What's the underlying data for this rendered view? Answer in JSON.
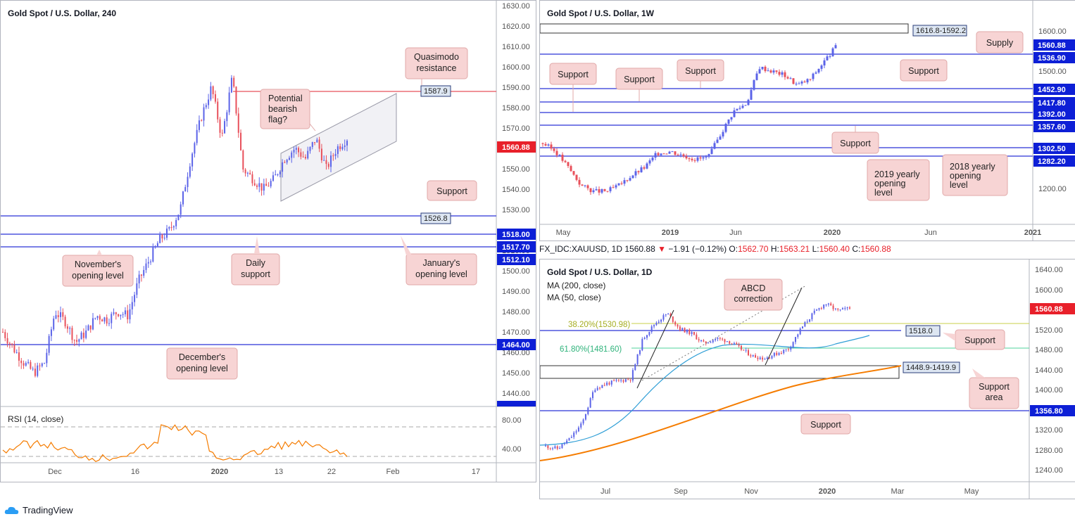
{
  "colors": {
    "up": "#5b63e8",
    "down": "#e8505b",
    "support_line": "#2b33d6",
    "resistance_line": "#e8505b",
    "rsi": "#f57c00",
    "ma200": "#f57c00",
    "ma50": "#2e9ed6",
    "fib38": "#c9d24a",
    "fib61": "#4fd39b",
    "label_bg": "#f7d4d4"
  },
  "brand": {
    "name": "TradingView",
    "icon": "tradingview-cloud-icon"
  },
  "panel_left": {
    "title": "Gold Spot / U.S. Dollar, 240",
    "y_ticks": [
      "1630.00",
      "1620.00",
      "1610.00",
      "1600.00",
      "1590.00",
      "1580.00",
      "1570.00",
      "1560.00",
      "1550.00",
      "1540.00",
      "1530.00",
      "1510.00",
      "1500.00",
      "1490.00",
      "1480.00",
      "1470.00",
      "1460.00",
      "1450.00",
      "1440.00"
    ],
    "x_ticks": [
      "Dec",
      "16",
      "2020",
      "13",
      "22",
      "Feb",
      "17"
    ],
    "price_tags": {
      "current": "1560.88",
      "t1518": "1518.00",
      "t1517": "1517.70",
      "t1512": "1512.10",
      "t1464": "1464.00",
      "t1433": "1433.50",
      "r1587": "1587.9",
      "s1526": "1526.8"
    },
    "labels": {
      "quasimodo": [
        "Quasimodo",
        "resistance"
      ],
      "flag": [
        "Potential",
        "bearish",
        "flag?"
      ],
      "support": "Support",
      "november": [
        "November's",
        "opening level"
      ],
      "daily": [
        "Daily",
        "support"
      ],
      "january": [
        "January's",
        "opening level"
      ],
      "december": [
        "December's",
        "opening level"
      ]
    },
    "rsi": {
      "title": "RSI (14, close)",
      "ticks": [
        "80.00",
        "40.00"
      ]
    }
  },
  "panel_weekly": {
    "title": "Gold Spot / U.S. Dollar, 1W",
    "y_ticks": [
      "1600.00",
      "1500.00",
      "1200.00"
    ],
    "x_ticks": [
      "May",
      "2019",
      "Jun",
      "2020",
      "Jun",
      "2021"
    ],
    "price_tags": {
      "current": "1560.88",
      "t1536": "1536.90",
      "t1452": "1452.90",
      "t1417": "1417.80",
      "t1392": "1392.00",
      "t1357": "1357.60",
      "t1302": "1302.50",
      "t1282": "1282.20",
      "supply_zone": "1616.8-1592.2"
    },
    "labels": {
      "supply": "Supply",
      "support": "Support",
      "y2019": [
        "2019 yearly",
        "opening",
        "level"
      ],
      "y2018": [
        "2018 yearly",
        "opening",
        "level"
      ]
    }
  },
  "info_line": {
    "symbol": "FX_IDC:XAUUSD, 1D",
    "price": "1560.88",
    "arrow": "▼",
    "change": "−1.91 (−0.12%)",
    "o_label": "O:",
    "o": "1562.70",
    "h_label": "H:",
    "h": "1563.21",
    "l_label": "L:",
    "l": "1560.40",
    "c_label": "C:",
    "c": "1560.88"
  },
  "panel_daily": {
    "title": "Gold Spot / U.S. Dollar, 1D",
    "ma200": "MA (200, close)",
    "ma50": "MA (50, close)",
    "y_ticks": [
      "1640.00",
      "1600.00",
      "1520.00",
      "1480.00",
      "1440.00",
      "1400.00",
      "1360.00",
      "1320.00",
      "1280.00",
      "1240.00"
    ],
    "x_ticks": [
      "Jul",
      "Sep",
      "Nov",
      "2020",
      "Mar",
      "May"
    ],
    "fib38": "38.20%(1530.98)",
    "fib61": "61.80%(1481.60)",
    "price_tags": {
      "current": "1560.88",
      "t1518": "1518.0",
      "zone": "1448.9-1419.9",
      "t1356": "1356.80"
    },
    "labels": {
      "abcd": [
        "ABCD",
        "correction"
      ],
      "support": "Support",
      "support_area": [
        "Support",
        "area"
      ]
    }
  }
}
